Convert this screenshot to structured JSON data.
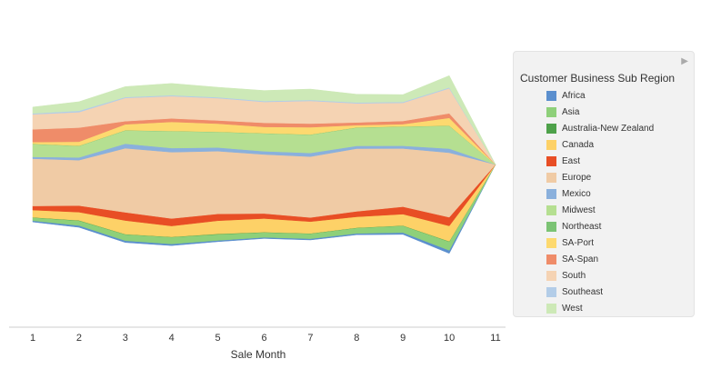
{
  "chart_data": {
    "type": "area",
    "subtype": "streamgraph",
    "xlabel": "Sale Month",
    "x": [
      1,
      2,
      3,
      4,
      5,
      6,
      7,
      8,
      9,
      10,
      11
    ],
    "legend_title": "Customer Business Sub Region",
    "legend_position": "right",
    "series": [
      {
        "name": "Africa",
        "color": "#5b8fce",
        "values": [
          1.4,
          2.0,
          2.0,
          1.8,
          1.4,
          1.3,
          1.4,
          1.5,
          2.0,
          3.4,
          0
        ]
      },
      {
        "name": "Asia",
        "color": "#8ed07a",
        "values": [
          3.4,
          5.3,
          6.8,
          7.5,
          6.8,
          5.4,
          5.5,
          6.0,
          7.5,
          9.5,
          0
        ]
      },
      {
        "name": "Australia-New Zealand",
        "color": "#4ea14a",
        "values": [
          0.3,
          0.4,
          0.4,
          0.3,
          0.4,
          0.3,
          0.3,
          0.3,
          0.3,
          0.4,
          0
        ]
      },
      {
        "name": "Canada",
        "color": "#fdd167",
        "values": [
          8.0,
          9.0,
          15.0,
          12.0,
          14.5,
          15.0,
          13.0,
          12.0,
          12.5,
          17.0,
          0
        ]
      },
      {
        "name": "East",
        "color": "#e84e25",
        "values": [
          4.5,
          7.2,
          9.0,
          8.2,
          7.5,
          5.5,
          4.5,
          6.0,
          8.2,
          9.5,
          0
        ]
      },
      {
        "name": "Europe",
        "color": "#f0cba5",
        "values": [
          52.0,
          50.0,
          70.5,
          73.0,
          69.0,
          65.0,
          67.0,
          69.0,
          64.0,
          71.0,
          0
        ]
      },
      {
        "name": "Mexico",
        "color": "#8ab0dc",
        "values": [
          2.0,
          3.0,
          5.0,
          4.5,
          4.0,
          3.5,
          4.0,
          3.0,
          3.0,
          4.5,
          0
        ]
      },
      {
        "name": "Midwest",
        "color": "#b5df91",
        "values": [
          14.0,
          12.5,
          14.5,
          18.5,
          17.0,
          19.5,
          20.0,
          20.0,
          21.0,
          25.0,
          0
        ]
      },
      {
        "name": "Northeast",
        "color": "#7bc374",
        "values": [
          0.3,
          0.3,
          0.3,
          0.3,
          0.3,
          0.3,
          0.3,
          0.3,
          0.3,
          0.3,
          0
        ]
      },
      {
        "name": "SA-Port",
        "color": "#fdd96f",
        "values": [
          2.0,
          4.5,
          6.5,
          10.0,
          9.0,
          7.0,
          8.0,
          2.5,
          2.5,
          8.5,
          0
        ]
      },
      {
        "name": "SA-Span",
        "color": "#ef8c69",
        "values": [
          14.0,
          15.5,
          3.5,
          3.8,
          3.5,
          4.5,
          4.0,
          3.0,
          3.5,
          5.0,
          0
        ]
      },
      {
        "name": "South",
        "color": "#f5d3b3",
        "values": [
          16.5,
          17.0,
          25.5,
          24.5,
          24.5,
          23.0,
          25.0,
          21.0,
          20.0,
          27.5,
          0
        ]
      },
      {
        "name": "Southeast",
        "color": "#b3cde8",
        "values": [
          1.0,
          1.5,
          1.0,
          1.0,
          1.0,
          1.0,
          1.0,
          1.0,
          1.0,
          1.0,
          0
        ]
      },
      {
        "name": "West",
        "color": "#cde9b7",
        "values": [
          7.0,
          10.0,
          11.5,
          13.0,
          11.0,
          11.5,
          12.0,
          9.0,
          8.0,
          13.0,
          0
        ]
      }
    ]
  },
  "legend": {
    "title": "Customer Business Sub Region",
    "arrow_icon": "play-right-icon"
  }
}
